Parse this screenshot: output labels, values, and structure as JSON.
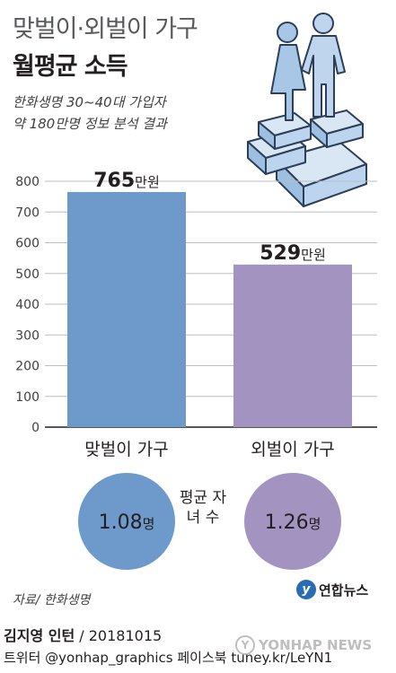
{
  "header": {
    "title_line1": "맞벌이·외벌이 가구",
    "title_line2": "월평균 소득",
    "subtitle_line1": "한화생명 30~40대 가입자",
    "subtitle_line2": "약 180만명 정보 분석 결과"
  },
  "chart_data": {
    "type": "bar",
    "categories": [
      "맞벌이 가구",
      "외벌이 가구"
    ],
    "values": [
      765,
      529
    ],
    "value_labels": [
      {
        "number": "765",
        "unit": "만원"
      },
      {
        "number": "529",
        "unit": "만원"
      }
    ],
    "ylim": [
      0,
      800
    ],
    "yticks": [
      0,
      100,
      200,
      300,
      400,
      500,
      600,
      700,
      800
    ],
    "grid": true,
    "colors": [
      "#6e9acb",
      "#a293c0"
    ]
  },
  "children": {
    "label": "평균 자녀 수",
    "values": [
      "1.08명",
      "1.26명"
    ],
    "colors": [
      "#6e9acb",
      "#a293c0"
    ]
  },
  "footer": {
    "source": "자료/ 한화생명",
    "logo_text": "연합뉴스",
    "author": "김지영 인턴",
    "date_suffix": " / 20181015",
    "social": "트위터 @yonhap_graphics  페이스북 tuney.kr/LeYN1",
    "watermark": "YONHAP NEWS"
  }
}
